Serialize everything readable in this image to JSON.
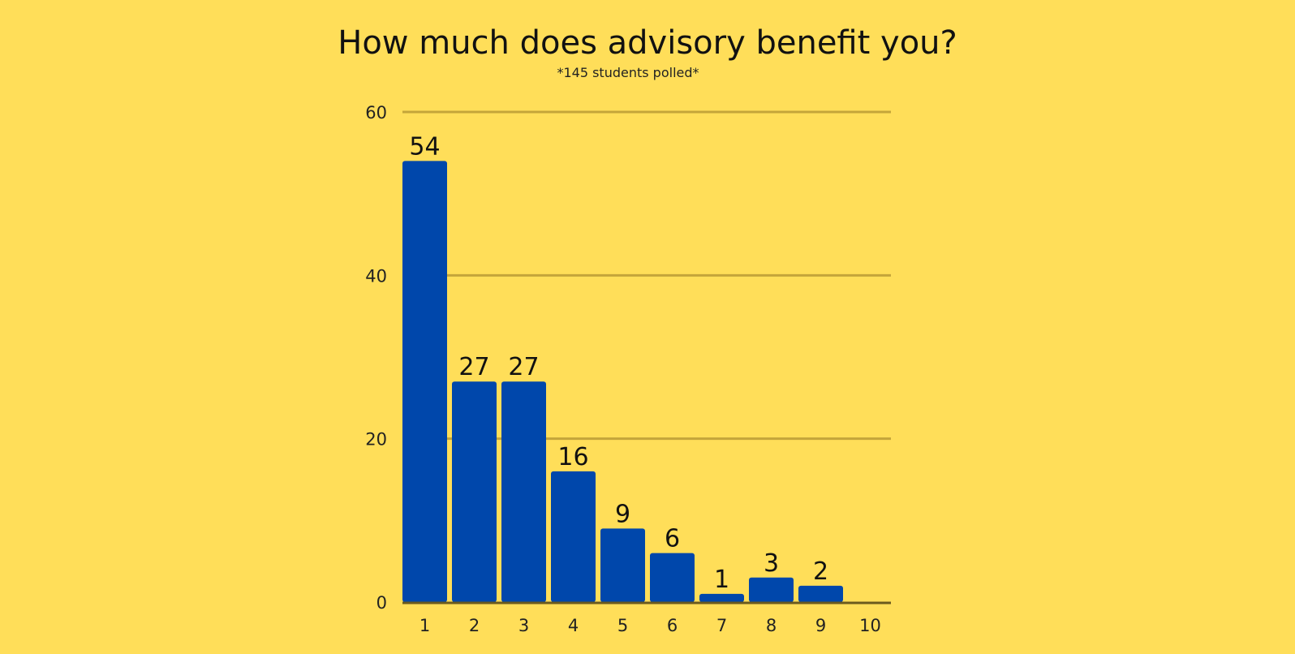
{
  "chart_data": {
    "type": "bar",
    "title": "How much does advisory benefit you?",
    "subtitle": "*145 students polled*",
    "categories": [
      "1",
      "2",
      "3",
      "4",
      "5",
      "6",
      "7",
      "8",
      "9",
      "10"
    ],
    "values": [
      54,
      27,
      27,
      16,
      9,
      6,
      1,
      3,
      2,
      0
    ],
    "data_labels": [
      "54",
      "27",
      "27",
      "16",
      "9",
      "6",
      "1",
      "3",
      "2",
      ""
    ],
    "ylim": [
      0,
      60
    ],
    "yticks": [
      0,
      20,
      40,
      60
    ],
    "ytick_labels": [
      "0",
      "20",
      "40",
      "60"
    ],
    "xlabel": "",
    "ylabel": "",
    "grid": true,
    "legend": "none",
    "colors": {
      "background": "#FFDE59",
      "bar": "#0047AB",
      "grid": "#C4A53A",
      "axis": "#6B5A1E",
      "text": "#111111"
    }
  }
}
